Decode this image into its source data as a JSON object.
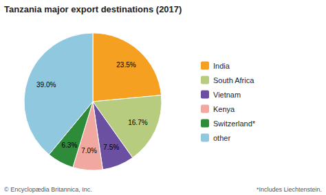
{
  "chart_data": {
    "type": "pie",
    "title": "Tanzania major export destinations (2017)",
    "categories": [
      "India",
      "South Africa",
      "Vietnam",
      "Kenya",
      "Switzerland*",
      "other"
    ],
    "values": [
      23.5,
      16.7,
      7.5,
      7.0,
      6.3,
      39.0
    ],
    "value_labels": [
      "23.5%",
      "16.7%",
      "7.5%",
      "7.0%",
      "6.3%",
      "39.0%"
    ],
    "colors": [
      "#F5A020",
      "#B8CC80",
      "#6B4FA0",
      "#F0A8A0",
      "#2E8B3A",
      "#90C8E0"
    ],
    "data_labels": true,
    "legend": "right",
    "annotations": [
      "© Encyclopædia Britannica, Inc.",
      "*Includes Liechtenstein."
    ]
  }
}
